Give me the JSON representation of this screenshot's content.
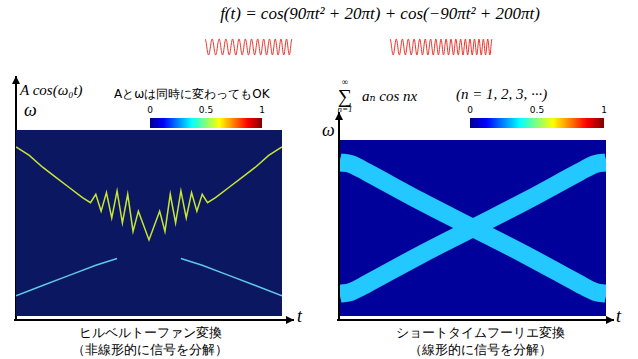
{
  "formula": "f(t) = cos(90πt² + 20πt)  +  cos(−90πt² + 200πt)",
  "chart_data": [
    {
      "type": "line",
      "title": "ヒルベルトーファン変換",
      "subtitle": "（非線形的に信号を分解）",
      "x_label": "t",
      "y_label": "ω",
      "annotations": [
        {
          "text": "A cos(ω₀t)"
        },
        {
          "text": "Aとωは同時に変わってもOK"
        }
      ],
      "xlim": [
        0,
        1
      ],
      "ylim": [
        0,
        110
      ],
      "tick_labels": false,
      "grid": false,
      "colorbar": {
        "range": [
          0,
          1
        ],
        "ticks": [
          0,
          0.5,
          1
        ]
      },
      "series": [
        {
          "color": "#c8e632",
          "x": [
            0,
            0.05,
            0.1,
            0.15,
            0.2,
            0.25,
            0.28,
            0.3,
            0.32,
            0.34,
            0.36,
            0.38,
            0.4,
            0.42,
            0.44,
            0.46,
            0.5,
            0.54,
            0.56,
            0.58,
            0.6,
            0.62,
            0.64,
            0.66,
            0.68,
            0.7,
            0.72,
            0.75,
            0.8,
            0.85,
            0.9,
            0.95,
            1
          ],
          "values": [
            100,
            95,
            88,
            82,
            76,
            70,
            67,
            72,
            62,
            73,
            58,
            74,
            55,
            72,
            50,
            62,
            45,
            62,
            50,
            72,
            55,
            74,
            58,
            73,
            62,
            72,
            67,
            70,
            76,
            82,
            88,
            95,
            100
          ]
        },
        {
          "color": "#5fc8e6",
          "x": [
            0,
            0.1,
            0.2,
            0.3,
            0.38,
            0.5,
            0.62,
            0.7,
            0.8,
            0.9,
            1
          ],
          "values": [
            12,
            18,
            24,
            30,
            34,
            null,
            34,
            30,
            24,
            18,
            12
          ]
        }
      ]
    },
    {
      "type": "line",
      "title": "ショートタイムフーリエ変換",
      "subtitle": "（線形的に信号を分解）",
      "x_label": "t",
      "y_label": "ω",
      "annotations": [
        {
          "sum": "∑",
          "upper": "∞",
          "lower": "n=1",
          "body": "aₙ cos nx"
        },
        {
          "text": "(n = 1, 2, 3, ···)"
        }
      ],
      "xlim": [
        0,
        1
      ],
      "ylim": [
        0,
        110
      ],
      "tick_labels": false,
      "grid": false,
      "colorbar": {
        "range": [
          0,
          1
        ],
        "ticks": [
          0,
          0.5,
          1
        ]
      },
      "series": [
        {
          "color": "#ff2a00",
          "x": [
            0,
            0.04,
            0.1,
            0.3,
            0.5,
            0.7,
            0.9,
            0.96,
            1
          ],
          "values": [
            96,
            95,
            90,
            72,
            55,
            38,
            20,
            15,
            14
          ]
        },
        {
          "color": "#ff2a00",
          "x": [
            0,
            0.04,
            0.1,
            0.3,
            0.5,
            0.7,
            0.9,
            0.96,
            1
          ],
          "values": [
            14,
            15,
            20,
            38,
            55,
            72,
            90,
            95,
            96
          ]
        }
      ]
    }
  ]
}
